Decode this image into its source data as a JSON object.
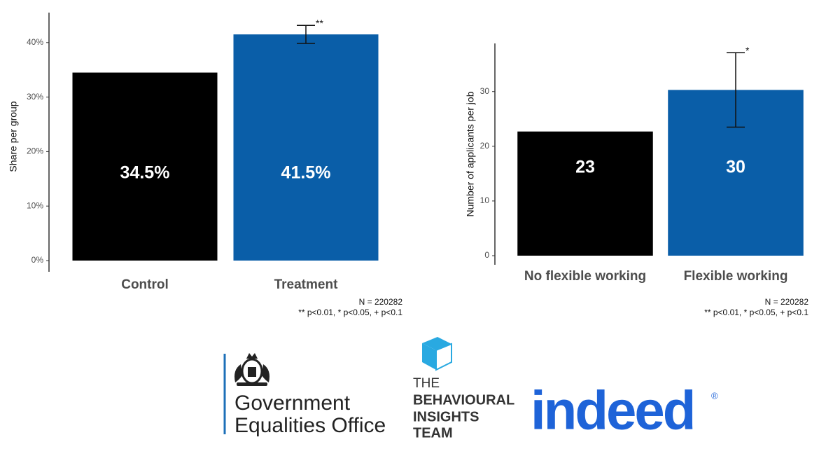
{
  "chart_data": [
    {
      "type": "bar",
      "ylabel": "Share per group",
      "categories": [
        "Control",
        "Treatment"
      ],
      "values": [
        34.5,
        41.5
      ],
      "value_labels": [
        "34.5%",
        "41.5%"
      ],
      "errors": [
        null,
        1.65
      ],
      "significance": [
        null,
        "**"
      ],
      "colors": [
        "#000000",
        "#0a5ea8"
      ],
      "ylim": [
        0,
        45.5
      ],
      "yticks": [
        {
          "value": 0,
          "label": "0%"
        },
        {
          "value": 10,
          "label": "10%"
        },
        {
          "value": 20,
          "label": "20%"
        },
        {
          "value": 30,
          "label": "30%"
        },
        {
          "value": 40,
          "label": "40%"
        }
      ],
      "notes": [
        "N = 220282",
        "** p<0.01, * p<0.05, + p<0.1"
      ]
    },
    {
      "type": "bar",
      "ylabel": "Number of applicants per job",
      "categories": [
        "No flexible working",
        "Flexible working"
      ],
      "values": [
        22.7,
        30.3
      ],
      "value_labels": [
        "23",
        "30"
      ],
      "errors": [
        null,
        6.8
      ],
      "significance": [
        null,
        "*"
      ],
      "colors": [
        "#000000",
        "#0a5ea8"
      ],
      "ylim": [
        0,
        38.8
      ],
      "yticks": [
        0,
        10,
        20,
        30
      ],
      "notes": [
        "N = 220282",
        "** p<0.01, * p<0.05, + p<0.1"
      ]
    }
  ],
  "logos": {
    "geo": [
      "Government",
      "Equalities Office"
    ],
    "bit": [
      "THE",
      "BEHAVIOURAL",
      "INSIGHTS",
      "TEAM"
    ],
    "indeed": "indeed",
    "indeed_mark": "®"
  }
}
